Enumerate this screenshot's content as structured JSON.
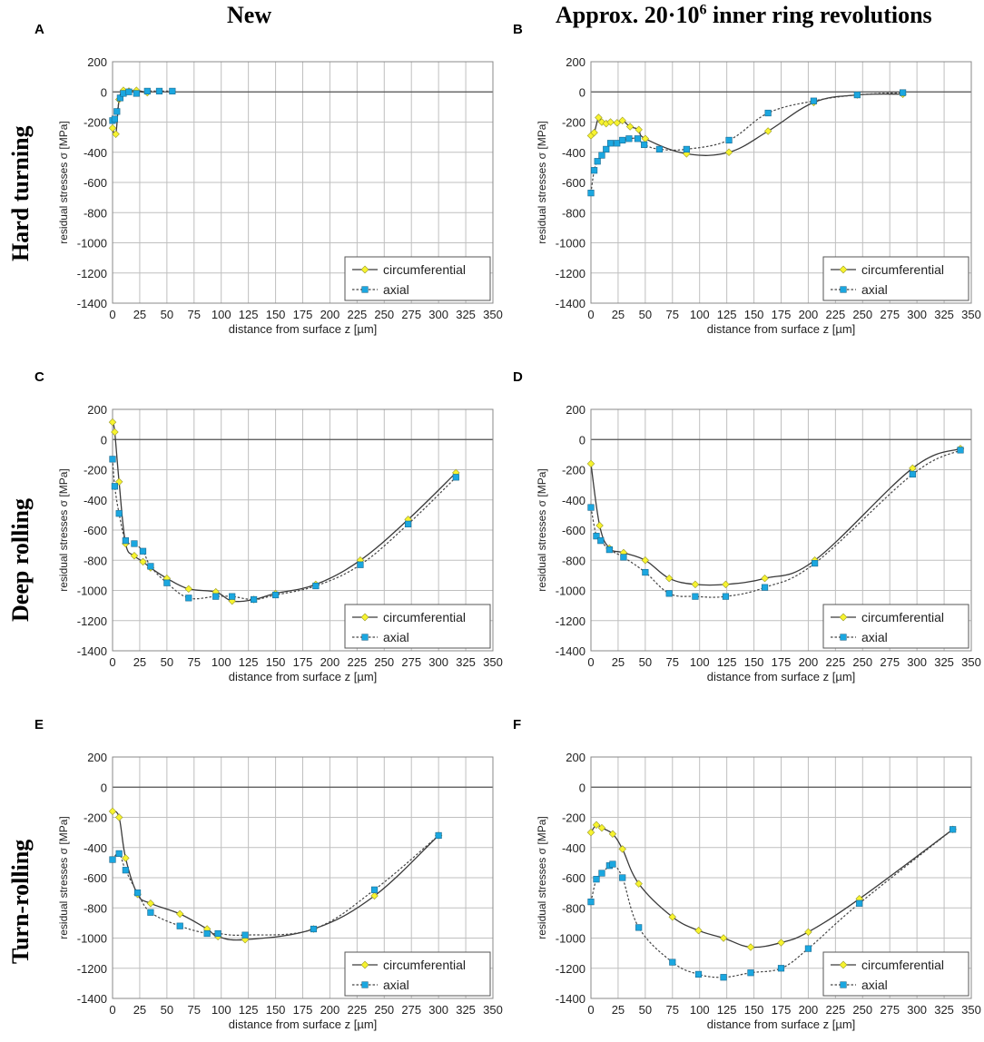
{
  "column_titles": {
    "left": "New",
    "right_prefix": "Approx. 20·10",
    "right_sup": "6",
    "right_suffix": " inner ring revolutions"
  },
  "row_titles": [
    "Hard turning",
    "Deep rolling",
    "Turn-rolling"
  ],
  "colors": {
    "circumferential_marker": "#f7f32f",
    "axial_marker": "#1ba7e0",
    "grid": "#bfbfbf",
    "line": "#333333"
  },
  "chart_data": [
    {
      "panel": "A",
      "type": "line",
      "xlabel": "distance from surface z [µm]",
      "ylabel": "residual stresses σ [MPa]",
      "xlim": [
        0,
        350
      ],
      "ylim": [
        -1400,
        200
      ],
      "xticks": [
        "0",
        "25",
        "50",
        "75",
        "100",
        "125",
        "150",
        "175",
        "200",
        "225",
        "250",
        "275",
        "300",
        "325",
        "350"
      ],
      "yticks": [
        "200",
        "0",
        "-200",
        "-400",
        "-600",
        "-800",
        "-1000",
        "-1200",
        "-1400"
      ],
      "legend": "bottom-right",
      "series": [
        {
          "name": "circumferential",
          "x": [
            0,
            3,
            6,
            10,
            15,
            22,
            32
          ],
          "y": [
            -240,
            -280,
            -50,
            10,
            5,
            10,
            -5
          ]
        },
        {
          "name": "axial",
          "x": [
            0,
            2,
            4,
            7,
            10,
            15,
            22,
            32,
            43,
            55
          ],
          "y": [
            -190,
            -180,
            -130,
            -40,
            -10,
            0,
            -10,
            5,
            5,
            5
          ]
        }
      ]
    },
    {
      "panel": "B",
      "type": "line",
      "xlabel": "distance from surface z [µm]",
      "ylabel": "residual stresses σ [MPa]",
      "xlim": [
        0,
        350
      ],
      "ylim": [
        -1400,
        200
      ],
      "xticks": [
        "0",
        "25",
        "50",
        "75",
        "100",
        "125",
        "150",
        "175",
        "200",
        "225",
        "250",
        "275",
        "300",
        "325",
        "350"
      ],
      "yticks": [
        "200",
        "0",
        "-200",
        "-400",
        "-600",
        "-800",
        "-1000",
        "-1200",
        "-1400"
      ],
      "legend": "bottom-right",
      "series": [
        {
          "name": "circumferential",
          "x": [
            0,
            3,
            7,
            10,
            14,
            18,
            24,
            29,
            36,
            44,
            50,
            88,
            127,
            163,
            205,
            245,
            287
          ],
          "y": [
            -290,
            -270,
            -170,
            -200,
            -210,
            -200,
            -205,
            -190,
            -230,
            -250,
            -310,
            -410,
            -400,
            -260,
            -70,
            -20,
            -15
          ]
        },
        {
          "name": "axial",
          "x": [
            0,
            3,
            6,
            10,
            14,
            18,
            24,
            29,
            35,
            43,
            49,
            63,
            88,
            127,
            163,
            205,
            245,
            287
          ],
          "y": [
            -670,
            -520,
            -460,
            -420,
            -380,
            -340,
            -340,
            -320,
            -310,
            -310,
            -350,
            -380,
            -380,
            -320,
            -140,
            -60,
            -20,
            -5
          ]
        }
      ]
    },
    {
      "panel": "C",
      "type": "line",
      "xlabel": "distance from surface z [µm]",
      "ylabel": "residual stresses σ [MPa]",
      "xlim": [
        0,
        350
      ],
      "ylim": [
        -1400,
        200
      ],
      "xticks": [
        "0",
        "25",
        "50",
        "75",
        "100",
        "125",
        "150",
        "175",
        "200",
        "225",
        "250",
        "275",
        "300",
        "325",
        "350"
      ],
      "yticks": [
        "200",
        "0",
        "-200",
        "-400",
        "-600",
        "-800",
        "-1000",
        "-1200",
        "-1400"
      ],
      "legend": "bottom-right",
      "series": [
        {
          "name": "circumferential",
          "x": [
            0,
            2,
            6,
            12,
            20,
            28,
            35,
            50,
            70,
            95,
            110,
            130,
            150,
            187,
            228,
            272,
            316
          ],
          "y": [
            115,
            50,
            -280,
            -690,
            -770,
            -810,
            -850,
            -920,
            -990,
            -1010,
            -1070,
            -1060,
            -1020,
            -960,
            -800,
            -530,
            -220
          ]
        },
        {
          "name": "axial",
          "x": [
            0,
            2,
            6,
            12,
            20,
            28,
            35,
            50,
            70,
            95,
            110,
            130,
            150,
            187,
            228,
            272,
            316
          ],
          "y": [
            -130,
            -310,
            -490,
            -670,
            -690,
            -740,
            -840,
            -950,
            -1050,
            -1040,
            -1040,
            -1060,
            -1030,
            -970,
            -830,
            -560,
            -250
          ]
        }
      ]
    },
    {
      "panel": "D",
      "type": "line",
      "xlabel": "distance from surface z [µm]",
      "ylabel": "residual stresses σ [MPa]",
      "xlim": [
        0,
        350
      ],
      "ylim": [
        -1400,
        200
      ],
      "xticks": [
        "0",
        "25",
        "50",
        "75",
        "100",
        "125",
        "150",
        "175",
        "200",
        "225",
        "250",
        "275",
        "300",
        "325",
        "350"
      ],
      "yticks": [
        "200",
        "0",
        "-200",
        "-400",
        "-600",
        "-800",
        "-1000",
        "-1200",
        "-1400"
      ],
      "legend": "bottom-right",
      "series": [
        {
          "name": "circumferential",
          "x": [
            0,
            8,
            17,
            30,
            50,
            72,
            96,
            124,
            160,
            206,
            296,
            340
          ],
          "y": [
            -160,
            -570,
            -720,
            -750,
            -800,
            -920,
            -960,
            -960,
            -920,
            -800,
            -190,
            -60
          ]
        },
        {
          "name": "axial",
          "x": [
            0,
            5,
            9,
            17,
            30,
            50,
            72,
            96,
            124,
            160,
            206,
            296,
            340
          ],
          "y": [
            -450,
            -640,
            -670,
            -730,
            -780,
            -880,
            -1020,
            -1040,
            -1040,
            -980,
            -820,
            -230,
            -70
          ]
        }
      ]
    },
    {
      "panel": "E",
      "type": "line",
      "xlabel": "distance from surface z [µm]",
      "ylabel": "residual stresses σ [MPa]",
      "xlim": [
        0,
        350
      ],
      "ylim": [
        -1400,
        200
      ],
      "xticks": [
        "0",
        "25",
        "50",
        "75",
        "100",
        "125",
        "150",
        "175",
        "200",
        "225",
        "250",
        "275",
        "300",
        "325",
        "350"
      ],
      "yticks": [
        "200",
        "0",
        "-200",
        "-400",
        "-600",
        "-800",
        "-1000",
        "-1200",
        "-1400"
      ],
      "legend": "bottom-right",
      "series": [
        {
          "name": "circumferential",
          "x": [
            0,
            6,
            12,
            23,
            35,
            62,
            87,
            97,
            122,
            185,
            241,
            300
          ],
          "y": [
            -160,
            -200,
            -470,
            -710,
            -770,
            -840,
            -940,
            -990,
            -1010,
            -940,
            -720,
            -320
          ]
        },
        {
          "name": "axial",
          "x": [
            0,
            6,
            12,
            23,
            35,
            62,
            87,
            97,
            122,
            185,
            241,
            300
          ],
          "y": [
            -480,
            -440,
            -550,
            -700,
            -830,
            -920,
            -970,
            -970,
            -980,
            -940,
            -680,
            -320
          ]
        }
      ]
    },
    {
      "panel": "F",
      "type": "line",
      "xlabel": "distance from surface z [µm]",
      "ylabel": "residual stresses σ [MPa]",
      "xlim": [
        0,
        350
      ],
      "ylim": [
        -1400,
        200
      ],
      "xticks": [
        "0",
        "25",
        "50",
        "75",
        "100",
        "125",
        "150",
        "175",
        "200",
        "225",
        "250",
        "275",
        "300",
        "325",
        "350"
      ],
      "yticks": [
        "200",
        "0",
        "-200",
        "-400",
        "-600",
        "-800",
        "-1000",
        "-1200",
        "-1400"
      ],
      "legend": "bottom-right",
      "series": [
        {
          "name": "circumferential",
          "x": [
            0,
            5,
            10,
            20,
            29,
            44,
            75,
            99,
            122,
            147,
            175,
            200,
            247,
            333
          ],
          "y": [
            -300,
            -250,
            -270,
            -310,
            -410,
            -640,
            -860,
            -950,
            -1000,
            -1060,
            -1030,
            -960,
            -740,
            -280
          ]
        },
        {
          "name": "axial",
          "x": [
            0,
            5,
            10,
            17,
            20,
            29,
            44,
            75,
            99,
            122,
            147,
            175,
            200,
            247,
            333
          ],
          "y": [
            -760,
            -610,
            -570,
            -520,
            -510,
            -600,
            -930,
            -1160,
            -1240,
            -1260,
            -1230,
            -1200,
            -1070,
            -770,
            -280
          ]
        }
      ]
    }
  ]
}
